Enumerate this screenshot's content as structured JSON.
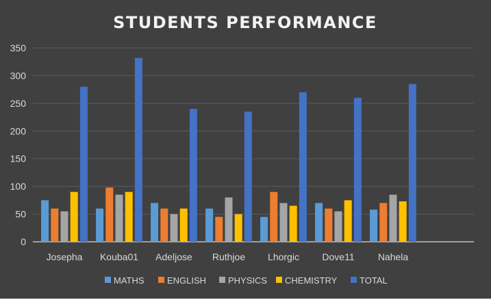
{
  "chart_data": {
    "type": "bar",
    "title": "STUDENTS PERFORMANCE",
    "categories": [
      "Josepha",
      "Kouba01",
      "Adeljose",
      "Ruthjoe",
      "Lhorgic",
      "Dove11",
      "Nahela"
    ],
    "series": [
      {
        "name": "MATHS",
        "color": "#5b9bd5",
        "values": [
          75,
          60,
          70,
          60,
          45,
          70,
          58
        ]
      },
      {
        "name": "ENGLISH",
        "color": "#ed7d31",
        "values": [
          60,
          98,
          60,
          45,
          90,
          60,
          70
        ]
      },
      {
        "name": "PHYSICS",
        "color": "#a5a5a5",
        "values": [
          55,
          85,
          50,
          80,
          70,
          55,
          85
        ]
      },
      {
        "name": "CHEMISTRY",
        "color": "#ffc000",
        "values": [
          90,
          90,
          60,
          50,
          65,
          75,
          73
        ]
      },
      {
        "name": "TOTAL",
        "color": "#4472c4",
        "values": [
          280,
          332,
          240,
          235,
          270,
          260,
          285
        ]
      }
    ],
    "ylim": [
      0,
      350
    ],
    "yticks": [
      0,
      50,
      100,
      150,
      200,
      250,
      300,
      350
    ],
    "grid": true,
    "legend": "bottom",
    "background_color": "#404040",
    "text_color": "#d9d9d9",
    "title_color": "#f2f2f2"
  }
}
